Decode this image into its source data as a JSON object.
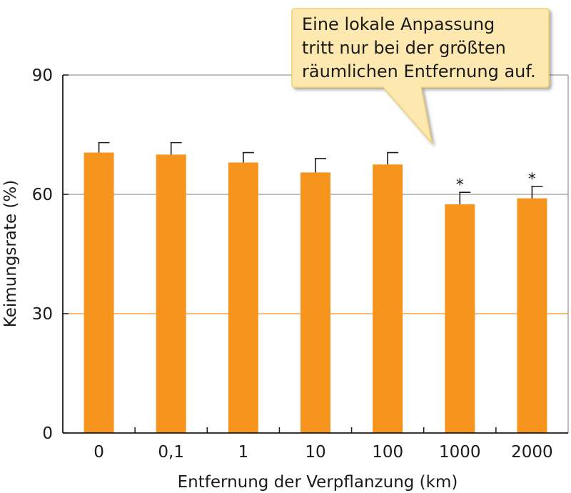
{
  "chart_data": {
    "type": "bar",
    "title": "",
    "xlabel": "Entfernung der Verpflanzung (km)",
    "ylabel": "Keimungsrate (%)",
    "ylim": [
      0,
      90
    ],
    "yticks": [
      "0",
      "30",
      "60",
      "90"
    ],
    "categories": [
      "0",
      "0,1",
      "1",
      "10",
      "100",
      "1000",
      "2000"
    ],
    "values": [
      70.5,
      70,
      68,
      65.5,
      67.5,
      57.5,
      59
    ],
    "errors": [
      2.5,
      3,
      2.5,
      3.5,
      3,
      3,
      3
    ],
    "significance": [
      "",
      "",
      "",
      "",
      "",
      "*",
      "*"
    ],
    "grid": true,
    "bar_color": "#f7941d",
    "gridline_colors": {
      "top": "#999999",
      "mid": "#999999",
      "low": "#f7941d"
    }
  },
  "callout": {
    "lines": [
      "Eine lokale Anpassung",
      "tritt nur bei der größten",
      "räumlichen Entfernung auf."
    ],
    "background": "#fde9b0",
    "border": "#f0d070"
  }
}
